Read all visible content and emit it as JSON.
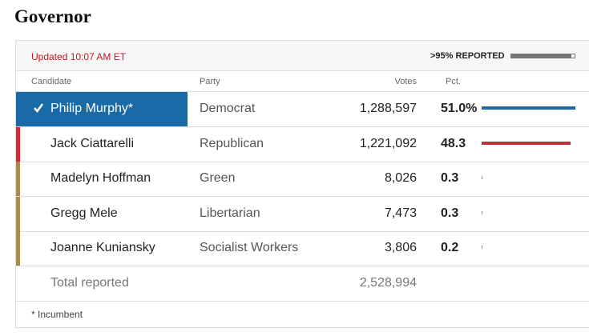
{
  "title": "Governor",
  "updated": "Updated 10:07 AM ET",
  "reported": ">95% REPORTED",
  "table": {
    "headers": [
      "Candidate",
      "Party",
      "Votes",
      "Pct."
    ],
    "rows": [
      {
        "candidate": "Philip Murphy*",
        "party": "Democrat",
        "votes": "1,288,597",
        "pct": {
          "value": 51.0,
          "label": "51.0%"
        },
        "color": "#1a6aa8",
        "winner": true
      },
      {
        "candidate": "Jack Ciattarelli",
        "party": "Republican",
        "votes": "1,221,092",
        "pct": {
          "value": 48.3,
          "label": "48.3"
        },
        "color": "#c0313a",
        "winner": false
      },
      {
        "candidate": "Madelyn Hoffman",
        "party": "Green",
        "votes": "8,026",
        "pct": {
          "value": 0.3,
          "label": "0.3"
        },
        "color": "#a8894f",
        "winner": false
      },
      {
        "candidate": "Gregg Mele",
        "party": "Libertarian",
        "votes": "7,473",
        "pct": {
          "value": 0.3,
          "label": "0.3"
        },
        "color": "#a8894f",
        "winner": false
      },
      {
        "candidate": "Joanne Kuniansky",
        "party": "Socialist Workers",
        "votes": "3,806",
        "pct": {
          "value": 0.2,
          "label": "0.2"
        },
        "color": "#a8894f",
        "winner": false
      }
    ],
    "total_label": "Total reported",
    "total_votes": "2,528,994"
  },
  "footnote": "* Incumbent"
}
